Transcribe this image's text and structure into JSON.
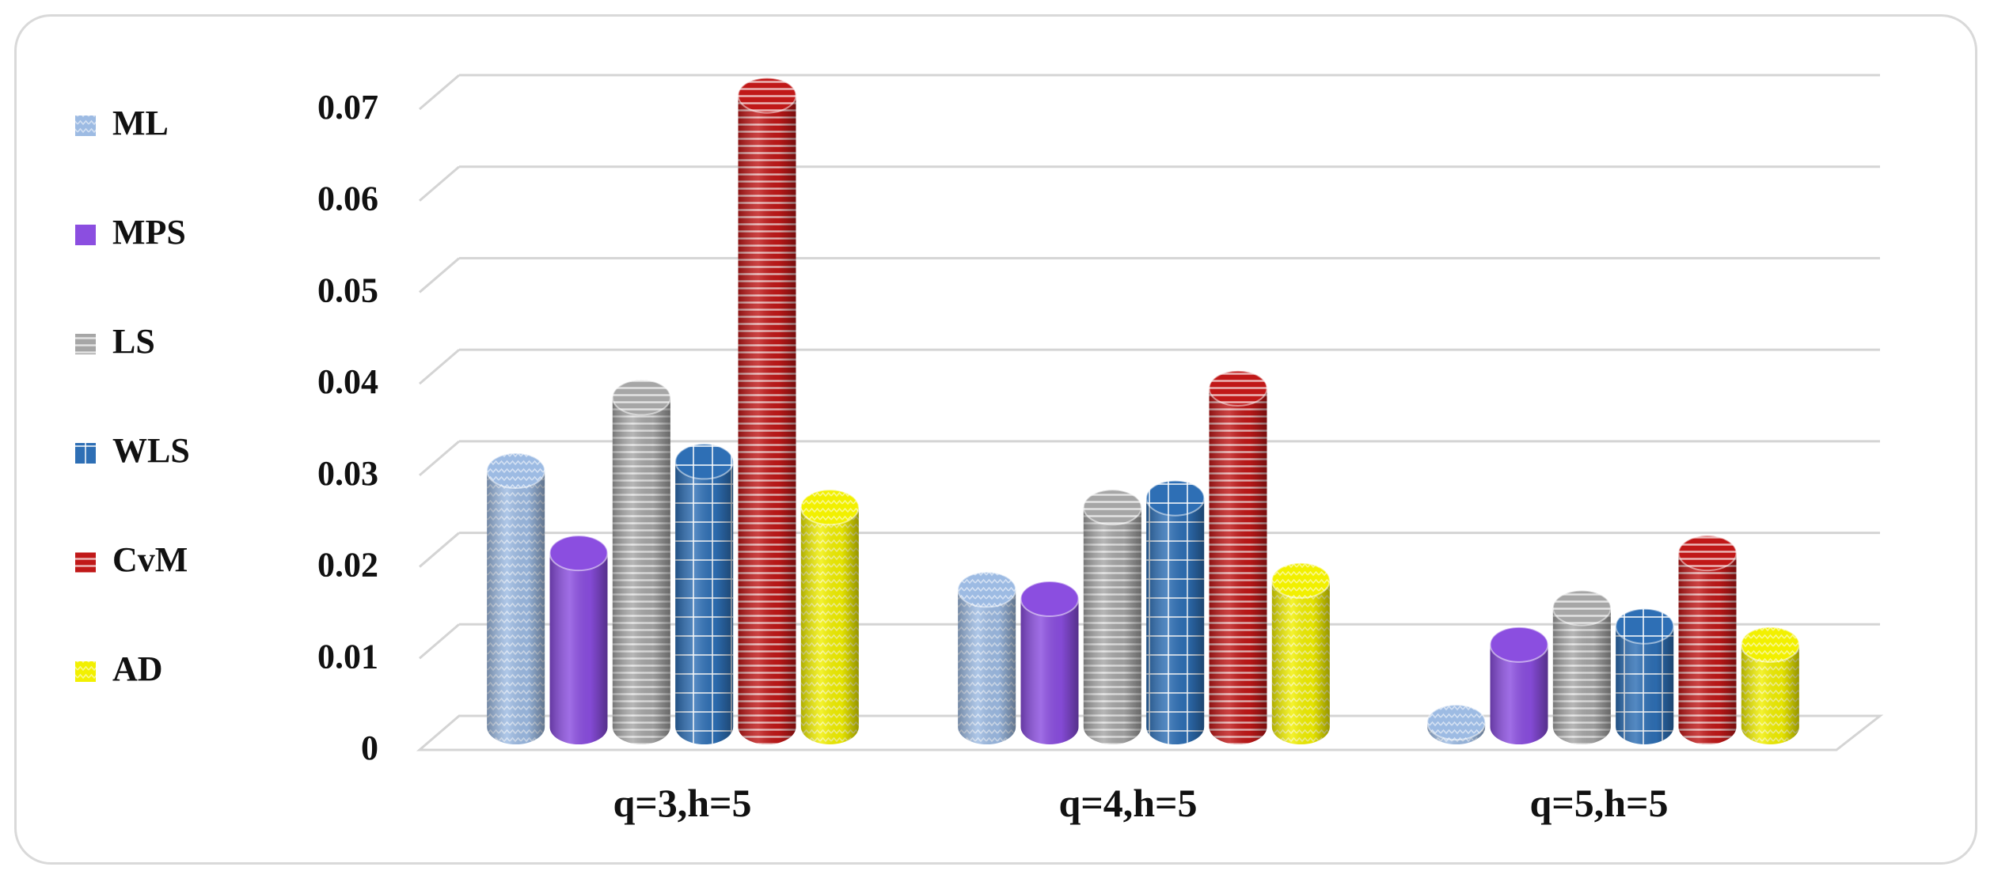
{
  "chart_data": {
    "type": "bar",
    "style": "3d-cylinder",
    "title": "",
    "xlabel": "",
    "ylabel": "",
    "categories": [
      "q=3,h=5",
      "q=4,h=5",
      "q=5,h=5"
    ],
    "ylim": [
      0,
      0.07
    ],
    "yticks": [
      "0",
      "0.01",
      "0.02",
      "0.03",
      "0.04",
      "0.05",
      "0.06",
      "0.07"
    ],
    "grid": true,
    "legend_position": "left",
    "series": [
      {
        "name": "ML",
        "color": "#9dbbe3",
        "pattern": "zigzag",
        "values": [
          0.028,
          0.015,
          0.0005
        ]
      },
      {
        "name": "MPS",
        "color": "#8b4ee0",
        "pattern": "solid",
        "values": [
          0.019,
          0.014,
          0.009
        ]
      },
      {
        "name": "LS",
        "color": "#a6a6a6",
        "pattern": "horizontal",
        "values": [
          0.036,
          0.024,
          0.013
        ]
      },
      {
        "name": "WLS",
        "color": "#2e6fb5",
        "pattern": "grid",
        "values": [
          0.029,
          0.025,
          0.011
        ]
      },
      {
        "name": "CvM",
        "color": "#c01818",
        "pattern": "horizontal",
        "values": [
          0.069,
          0.037,
          0.019
        ]
      },
      {
        "name": "AD",
        "color": "#f2f000",
        "pattern": "zigzag",
        "values": [
          0.024,
          0.016,
          0.009
        ]
      }
    ]
  }
}
